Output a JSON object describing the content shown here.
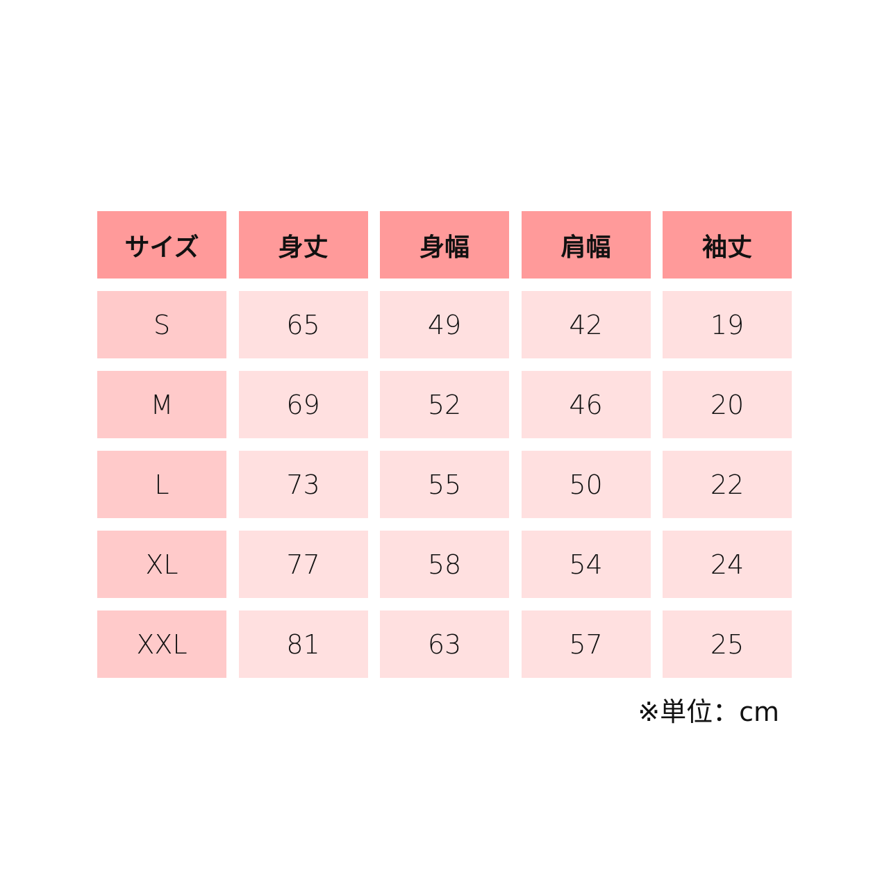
{
  "headers": [
    "サイズ",
    "身丈",
    "身幅",
    "肩幅",
    "袖丈"
  ],
  "rows": [
    [
      "S",
      "65",
      "49",
      "42",
      "19"
    ],
    [
      "M",
      "69",
      "52",
      "46",
      "20"
    ],
    [
      "L",
      "73",
      "55",
      "50",
      "22"
    ],
    [
      "XL",
      "77",
      "58",
      "54",
      "24"
    ],
    [
      "XXL",
      "81",
      "63",
      "57",
      "25"
    ]
  ],
  "note": "※単位：cm",
  "colors": {
    "header": "#FF9A9A",
    "size_column": "#FFCACA",
    "value_cell": "#FFE0E0"
  }
}
